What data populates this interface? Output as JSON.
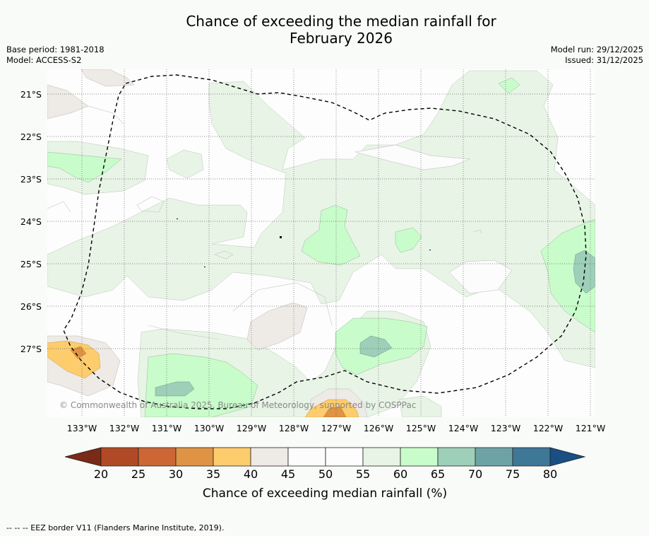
{
  "title_line1": "Chance of exceeding the median rainfall for",
  "title_line2": "February 2026",
  "base_period": "Base period: 1981-2018",
  "model": "Model: ACCESS-S2",
  "model_run": "Model run: 29/12/2025",
  "issued": "Issued: 31/12/2025",
  "copyright": "© Commonwealth of Australia 2025, Bureau of Meteorology, supported by COSPPac",
  "footer": "--  --  -- EEZ border V11 (Flanders Marine Institute, 2019).",
  "colorbar": {
    "title": "Chance of exceeding median rainfall (%)",
    "ticks": [
      "20",
      "25",
      "30",
      "35",
      "40",
      "45",
      "50",
      "55",
      "60",
      "65",
      "70",
      "75",
      "80"
    ],
    "colors": [
      "#7a2a16",
      "#b04a26",
      "#cc6634",
      "#df9344",
      "#fdcc6c",
      "#eeeae5",
      "#fbfcfb",
      "#fdfdfd",
      "#e8f4e6",
      "#c9fccb",
      "#9ecfb9",
      "#6ea3a6",
      "#3f7796",
      "#194f84"
    ]
  },
  "axes": {
    "lat_labels": [
      "21°S",
      "22°S",
      "23°S",
      "24°S",
      "25°S",
      "26°S",
      "27°S"
    ],
    "lon_labels": [
      "133°W",
      "132°W",
      "131°W",
      "130°W",
      "129°W",
      "128°W",
      "127°W",
      "126°W",
      "125°W",
      "124°W",
      "123°W",
      "122°W",
      "121°W"
    ]
  },
  "chart_data": {
    "type": "heatmap",
    "title": "Chance of exceeding the median rainfall for February 2026",
    "variable": "Chance of exceeding median rainfall (%)",
    "levels": [
      20,
      25,
      30,
      35,
      40,
      45,
      50,
      55,
      60,
      65,
      70,
      75,
      80
    ],
    "lon_range": [
      "133.8°W",
      "120.9°W"
    ],
    "lat_range": [
      "20.4°S",
      "28.6°S"
    ],
    "regions": [
      {
        "name": "zone-55-60-central",
        "category": "55-60"
      },
      {
        "name": "zone-60-65-central",
        "category": "60-65"
      },
      {
        "name": "zone-60-65-west",
        "category": "60-65"
      },
      {
        "name": "zone-60-65-east",
        "category": "60-65"
      },
      {
        "name": "zone-60-65-south",
        "category": "60-65"
      },
      {
        "name": "zone-65-70-east",
        "category": "65-70"
      },
      {
        "name": "zone-65-70-south",
        "category": "65-70"
      },
      {
        "name": "zone-40-45-southwest",
        "category": "40-45"
      },
      {
        "name": "zone-35-40-southwest",
        "category": "35-40"
      },
      {
        "name": "zone-35-40-south",
        "category": "35-40"
      },
      {
        "name": "zone-45-50-patches",
        "category": "45-50"
      }
    ]
  }
}
